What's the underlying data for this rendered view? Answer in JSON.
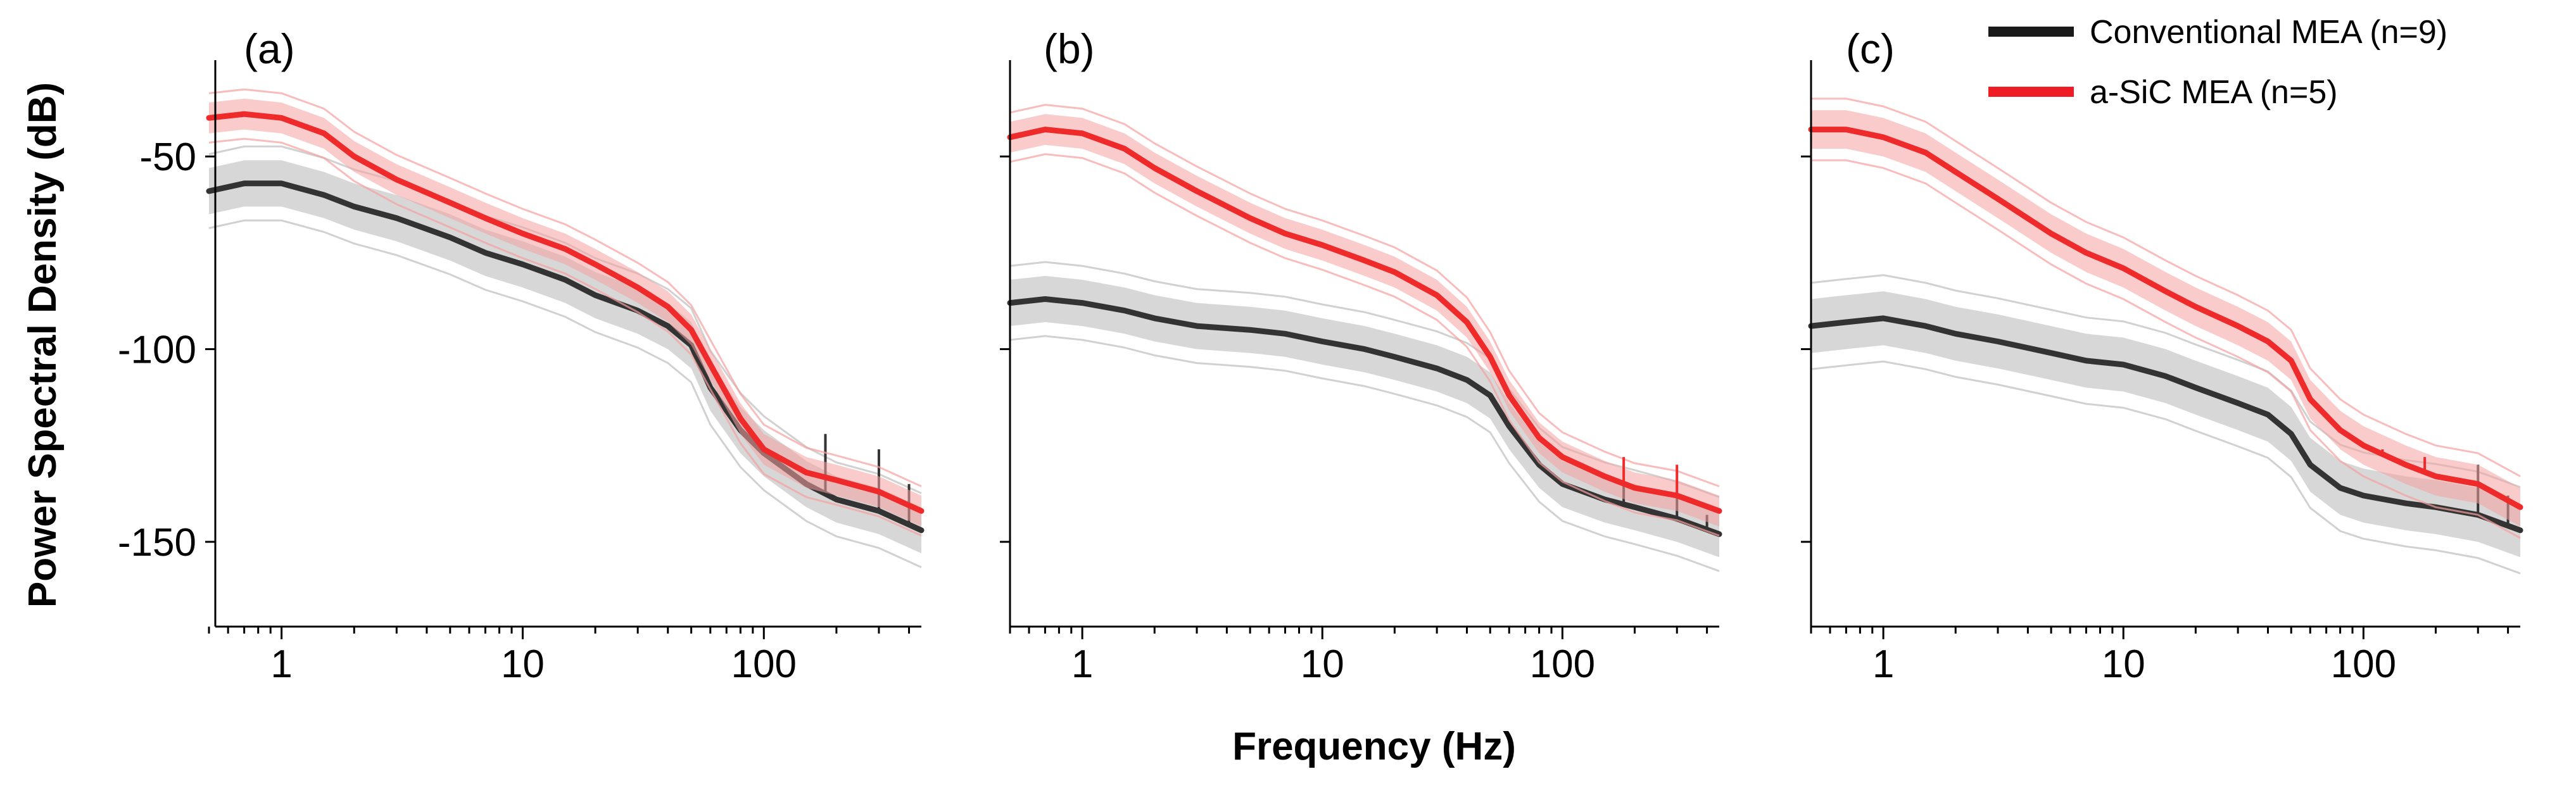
{
  "chart_data": [
    {
      "type": "line",
      "panel_label": "(a)",
      "xscale": "log",
      "xlim": [
        0.5,
        450
      ],
      "ylim": [
        -172,
        -25
      ],
      "xticks": [
        {
          "value": 1,
          "label": "1"
        },
        {
          "value": 10,
          "label": "10"
        },
        {
          "value": 100,
          "label": "100"
        }
      ],
      "yticks": [
        {
          "value": -50,
          "label": "-50"
        },
        {
          "value": -100,
          "label": "-100"
        },
        {
          "value": -150,
          "label": "-150"
        }
      ],
      "series": [
        {
          "name": "Conventional MEA (n=9)",
          "band": 6,
          "x": [
            0.5,
            0.7,
            1,
            1.5,
            2,
            3,
            5,
            7,
            10,
            15,
            20,
            30,
            40,
            50,
            60,
            80,
            100,
            150,
            200,
            300,
            450
          ],
          "y": [
            -59,
            -57,
            -57,
            -60,
            -63,
            -66,
            -71,
            -75,
            -78,
            -82,
            -86,
            -90,
            -94,
            -99,
            -110,
            -121,
            -127,
            -135,
            -139,
            -142,
            -147
          ],
          "spikes": [
            {
              "x": 180,
              "top": -122
            },
            {
              "x": 300,
              "top": -126
            },
            {
              "x": 400,
              "top": -135
            }
          ]
        },
        {
          "name": "a-SiC MEA (n=5)",
          "band": 4,
          "x": [
            0.5,
            0.7,
            1,
            1.5,
            2,
            3,
            5,
            7,
            10,
            15,
            20,
            30,
            40,
            50,
            60,
            80,
            100,
            150,
            200,
            300,
            450
          ],
          "y": [
            -40,
            -39,
            -40,
            -44,
            -50,
            -56,
            -62,
            -66,
            -70,
            -74,
            -78,
            -84,
            -89,
            -95,
            -104,
            -118,
            -126,
            -132,
            -134,
            -137,
            -142
          ],
          "spikes": []
        }
      ]
    },
    {
      "type": "line",
      "panel_label": "(b)",
      "xscale": "log",
      "xlim": [
        0.5,
        450
      ],
      "ylim": [
        -172,
        -25
      ],
      "xticks": [
        {
          "value": 1,
          "label": "1"
        },
        {
          "value": 10,
          "label": "10"
        },
        {
          "value": 100,
          "label": "100"
        }
      ],
      "yticks": [
        {
          "value": -50,
          "label": ""
        },
        {
          "value": -100,
          "label": ""
        },
        {
          "value": -150,
          "label": ""
        }
      ],
      "series": [
        {
          "name": "Conventional MEA (n=9)",
          "band": 6,
          "x": [
            0.5,
            0.7,
            1,
            1.5,
            2,
            3,
            5,
            7,
            10,
            15,
            20,
            30,
            40,
            50,
            60,
            80,
            100,
            150,
            200,
            300,
            450
          ],
          "y": [
            -88,
            -87,
            -88,
            -90,
            -92,
            -94,
            -95,
            -96,
            -98,
            -100,
            -102,
            -105,
            -108,
            -112,
            -120,
            -130,
            -135,
            -139,
            -141,
            -144,
            -148
          ],
          "spikes": [
            {
              "x": 180,
              "top": -135
            },
            {
              "x": 300,
              "top": -138
            },
            {
              "x": 400,
              "top": -143
            }
          ]
        },
        {
          "name": "a-SiC MEA (n=5)",
          "band": 4,
          "x": [
            0.5,
            0.7,
            1,
            1.5,
            2,
            3,
            5,
            7,
            10,
            15,
            20,
            30,
            40,
            50,
            60,
            80,
            100,
            150,
            200,
            300,
            450
          ],
          "y": [
            -45,
            -43,
            -44,
            -48,
            -53,
            -59,
            -66,
            -70,
            -73,
            -77,
            -80,
            -86,
            -93,
            -102,
            -112,
            -123,
            -128,
            -133,
            -136,
            -138,
            -142
          ],
          "spikes": [
            {
              "x": 180,
              "top": -128
            },
            {
              "x": 300,
              "top": -130
            }
          ]
        }
      ]
    },
    {
      "type": "line",
      "panel_label": "(c)",
      "xscale": "log",
      "xlim": [
        0.5,
        450
      ],
      "ylim": [
        -172,
        -25
      ],
      "xticks": [
        {
          "value": 1,
          "label": "1"
        },
        {
          "value": 10,
          "label": "10"
        },
        {
          "value": 100,
          "label": "100"
        }
      ],
      "yticks": [
        {
          "value": -50,
          "label": ""
        },
        {
          "value": -100,
          "label": ""
        },
        {
          "value": -150,
          "label": ""
        }
      ],
      "series": [
        {
          "name": "Conventional MEA (n=9)",
          "band": 7,
          "x": [
            0.5,
            0.7,
            1,
            1.5,
            2,
            3,
            5,
            7,
            10,
            15,
            20,
            30,
            40,
            50,
            60,
            80,
            100,
            150,
            200,
            300,
            450
          ],
          "y": [
            -94,
            -93,
            -92,
            -94,
            -96,
            -98,
            -101,
            -103,
            -104,
            -107,
            -110,
            -114,
            -117,
            -122,
            -130,
            -136,
            -138,
            -140,
            -141,
            -143,
            -147
          ],
          "spikes": [
            {
              "x": 300,
              "top": -130
            },
            {
              "x": 400,
              "top": -138
            }
          ]
        },
        {
          "name": "a-SiC MEA (n=5)",
          "band": 5,
          "x": [
            0.5,
            0.7,
            1,
            1.5,
            2,
            3,
            5,
            7,
            10,
            15,
            20,
            30,
            40,
            50,
            60,
            80,
            100,
            150,
            200,
            300,
            450
          ],
          "y": [
            -43,
            -43,
            -45,
            -49,
            -54,
            -61,
            -70,
            -75,
            -79,
            -85,
            -89,
            -94,
            -98,
            -103,
            -113,
            -121,
            -125,
            -130,
            -133,
            -135,
            -141
          ],
          "spikes": [
            {
              "x": 120,
              "top": -126
            },
            {
              "x": 180,
              "top": -128
            }
          ]
        }
      ]
    }
  ],
  "axes": {
    "ylabel": "Power Spectral Density (dB)",
    "xlabel": "Frequency (Hz)"
  },
  "legend": {
    "position": "top-right",
    "entries": [
      {
        "name": "Conventional MEA (n=9)",
        "color": "#1a1a1a"
      },
      {
        "name": "a-SiC MEA (n=5)",
        "color": "#ee1c24"
      }
    ]
  },
  "colors": {
    "conventional_line": "#333333",
    "conventional_band": "#bdbdbd",
    "asic_line": "#ee2a2a",
    "asic_band": "#f6a0a0",
    "axis": "#000000"
  }
}
